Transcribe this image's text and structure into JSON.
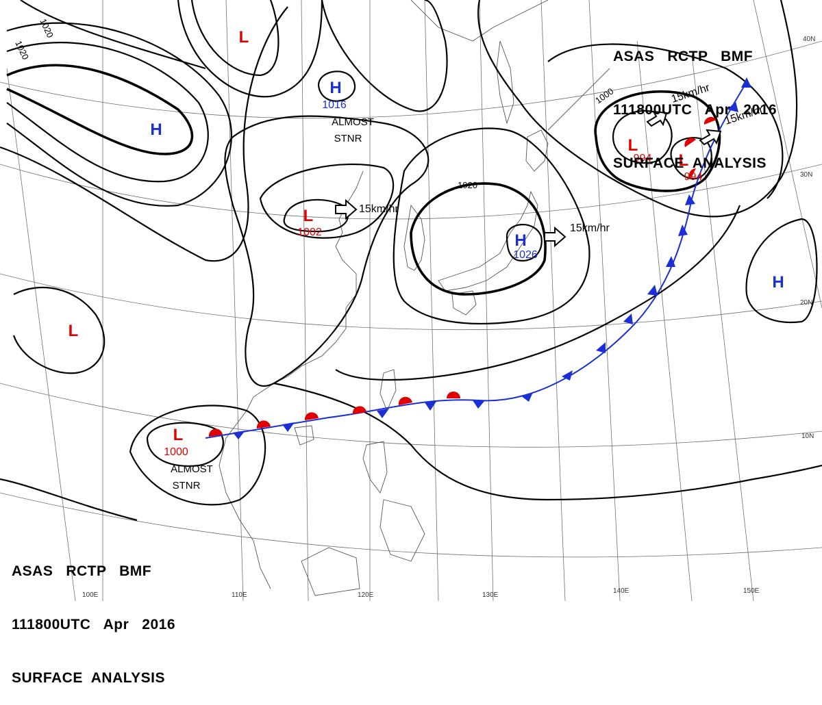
{
  "header_top": {
    "line1": "ASAS   RCTP   BMF",
    "line2": "111800UTC   Apr   2016",
    "line3": "SURFACE  ANALYSIS"
  },
  "header_bottom": {
    "line1": "ASAS   RCTP   BMF",
    "line2": "111800UTC   Apr   2016",
    "line3": "SURFACE  ANALYSIS"
  },
  "longitudes": [
    "100E",
    "110E",
    "120E",
    "130E",
    "140E",
    "150E"
  ],
  "latitudes": [
    "40N",
    "30N",
    "20N",
    "10N"
  ],
  "pressure_centers": [
    {
      "type": "L",
      "value": "",
      "color": "#e00000"
    },
    {
      "type": "H",
      "value": "",
      "color": "#1a2fd6"
    },
    {
      "type": "H",
      "value": "1016",
      "color": "#1a2fd6"
    },
    {
      "type": "L",
      "value": "1002",
      "color": "#e00000"
    },
    {
      "type": "H",
      "value": "1026",
      "color": "#1a2fd6"
    },
    {
      "type": "L",
      "value": "994",
      "color": "#e00000"
    },
    {
      "type": "L",
      "value": "994",
      "color": "#e00000"
    },
    {
      "type": "H",
      "value": "",
      "color": "#1a2fd6"
    },
    {
      "type": "L",
      "value": "",
      "color": "#e00000"
    },
    {
      "type": "L",
      "value": "1000",
      "color": "#e00000"
    }
  ],
  "isobar_labels": [
    "1020",
    "1020",
    "1020",
    "1000"
  ],
  "motion_labels": [
    "15km/hr",
    "15km/hr",
    "15km/hr",
    "15km/hr"
  ],
  "notes": [
    "ALMOST",
    "STNR",
    "ALMOST",
    "STNR"
  ],
  "colors": {
    "low": "#e00000",
    "high": "#1a2fd6",
    "cold_front": "#1a2fd6",
    "warm_front": "#e00000"
  }
}
